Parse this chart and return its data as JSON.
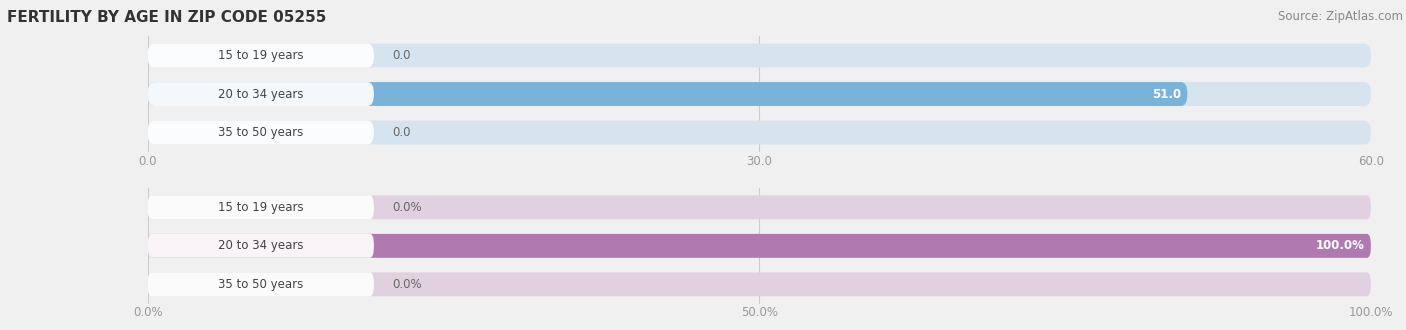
{
  "title": "FERTILITY BY AGE IN ZIP CODE 05255",
  "source_text": "Source: ZipAtlas.com",
  "top_chart": {
    "categories": [
      "15 to 19 years",
      "20 to 34 years",
      "35 to 50 years"
    ],
    "values": [
      0.0,
      51.0,
      0.0
    ],
    "xlim": [
      0,
      60.0
    ],
    "xticks": [
      0.0,
      30.0,
      60.0
    ],
    "xtick_labels": [
      "0.0",
      "30.0",
      "60.0"
    ],
    "bar_color": "#7ab3d9",
    "bar_bg_color": "#d6e4f0",
    "label_pill_color": "#ffffff"
  },
  "bottom_chart": {
    "categories": [
      "15 to 19 years",
      "20 to 34 years",
      "35 to 50 years"
    ],
    "values": [
      0.0,
      100.0,
      0.0
    ],
    "xlim": [
      0,
      100.0
    ],
    "xticks": [
      0.0,
      50.0,
      100.0
    ],
    "xtick_labels": [
      "0.0%",
      "50.0%",
      "100.0%"
    ],
    "bar_color": "#b07ab0",
    "bar_bg_color": "#e0d0e0",
    "label_pill_color": "#ffffff"
  },
  "fig_bg_color": "#f0f0f0",
  "title_fontsize": 11,
  "label_fontsize": 8.5,
  "tick_fontsize": 8.5,
  "source_fontsize": 8.5
}
